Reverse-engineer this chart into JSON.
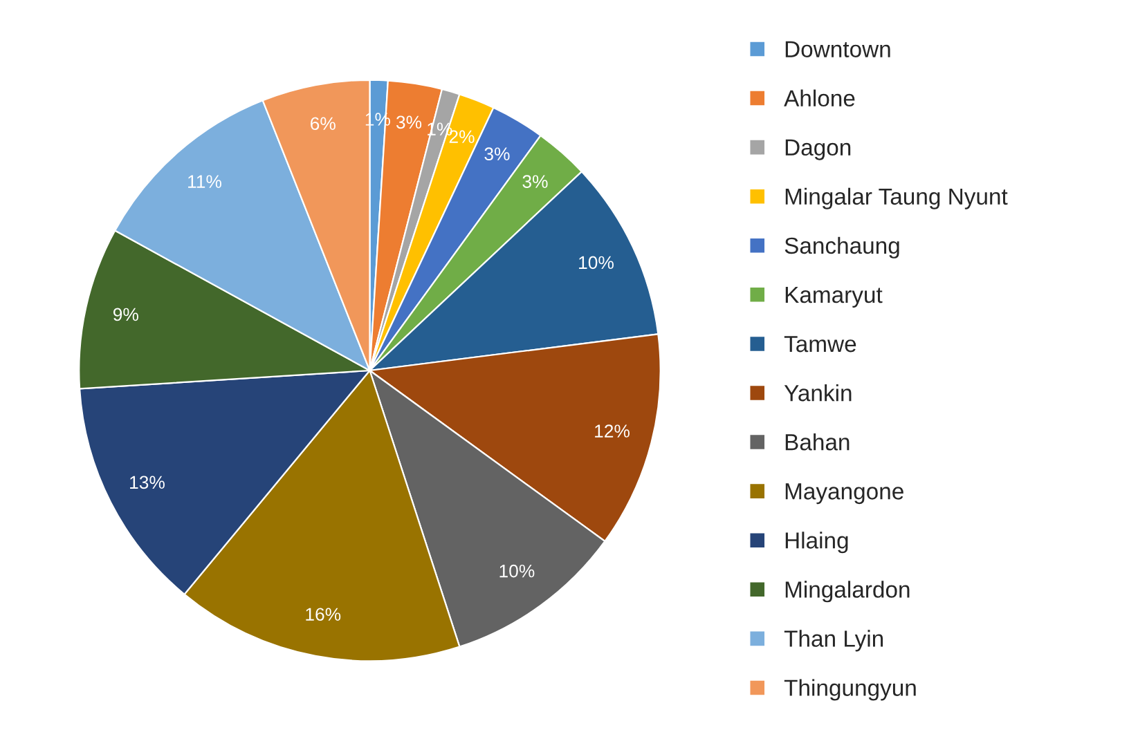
{
  "chart_data": {
    "type": "pie",
    "categories": [
      "Downtown",
      "Ahlone",
      "Dagon",
      "Mingalar Taung Nyunt",
      "Sanchaung",
      "Kamaryut",
      "Tamwe",
      "Yankin",
      "Bahan",
      "Mayangone",
      "Hlaing",
      "Mingalardon",
      "Than Lyin",
      "Thingungyun"
    ],
    "values": [
      1,
      3,
      1,
      2,
      3,
      3,
      10,
      12,
      10,
      16,
      13,
      9,
      11,
      6
    ],
    "colors": [
      "#5b9bd5",
      "#ed7d31",
      "#a5a5a5",
      "#ffc000",
      "#4472c4",
      "#70ad47",
      "#255e91",
      "#9e480e",
      "#636363",
      "#997300",
      "#264478",
      "#43682b",
      "#7cafdd",
      "#f1975a"
    ],
    "value_labels": [
      "1%",
      "3%",
      "1%",
      "2%",
      "3%",
      "3%",
      "10%",
      "12%",
      "10%",
      "16%",
      "13%",
      "9%",
      "11%",
      "6%"
    ],
    "legend": "right"
  }
}
